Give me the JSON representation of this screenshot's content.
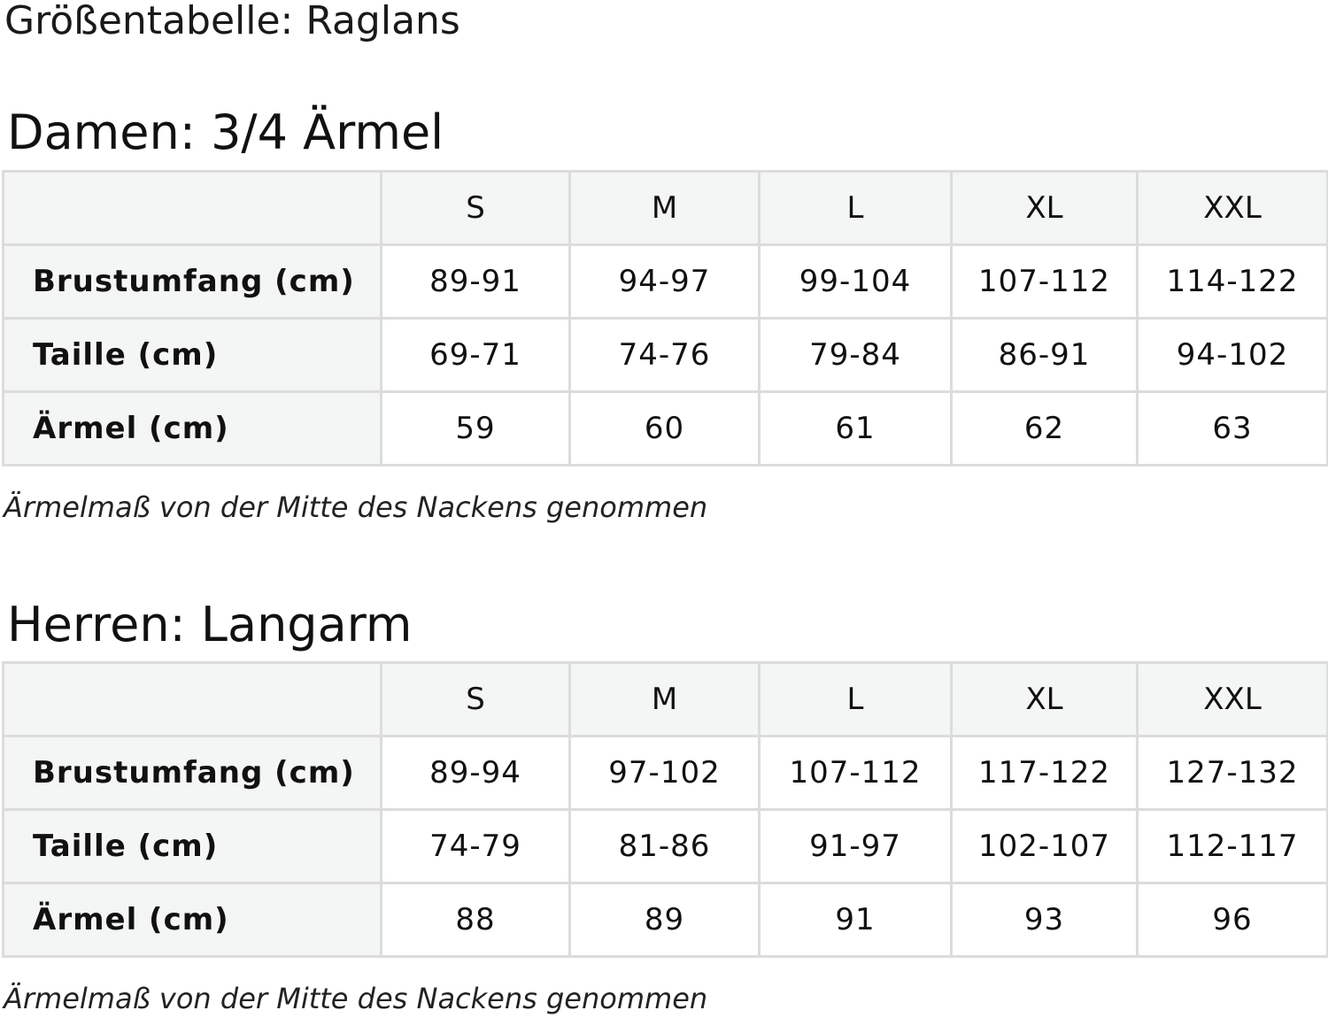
{
  "title": "Größentabelle: Raglans",
  "sections": [
    {
      "heading": "Damen: 3/4 Ärmel",
      "columns": [
        "",
        "S",
        "M",
        "L",
        "XL",
        "XXL"
      ],
      "rows": [
        {
          "label": "Brustumfang (cm)",
          "values": [
            "89-91",
            "94-97",
            "99-104",
            "107-112",
            "114-122"
          ]
        },
        {
          "label": "Taille (cm)",
          "values": [
            "69-71",
            "74-76",
            "79-84",
            "86-91",
            "94-102"
          ]
        },
        {
          "label": "Ärmel (cm)",
          "values": [
            "59",
            "60",
            "61",
            "62",
            "63"
          ]
        }
      ],
      "note": "Ärmelmaß von der Mitte des Nackens genommen"
    },
    {
      "heading": "Herren: Langarm",
      "columns": [
        "",
        "S",
        "M",
        "L",
        "XL",
        "XXL"
      ],
      "rows": [
        {
          "label": "Brustumfang (cm)",
          "values": [
            "89-94",
            "97-102",
            "107-112",
            "117-122",
            "127-132"
          ]
        },
        {
          "label": "Taille (cm)",
          "values": [
            "74-79",
            "81-86",
            "91-97",
            "102-107",
            "112-117"
          ]
        },
        {
          "label": "Ärmel (cm)",
          "values": [
            "88",
            "89",
            "91",
            "93",
            "96"
          ]
        }
      ],
      "note": "Ärmelmaß von der Mitte des Nackens genommen"
    }
  ]
}
